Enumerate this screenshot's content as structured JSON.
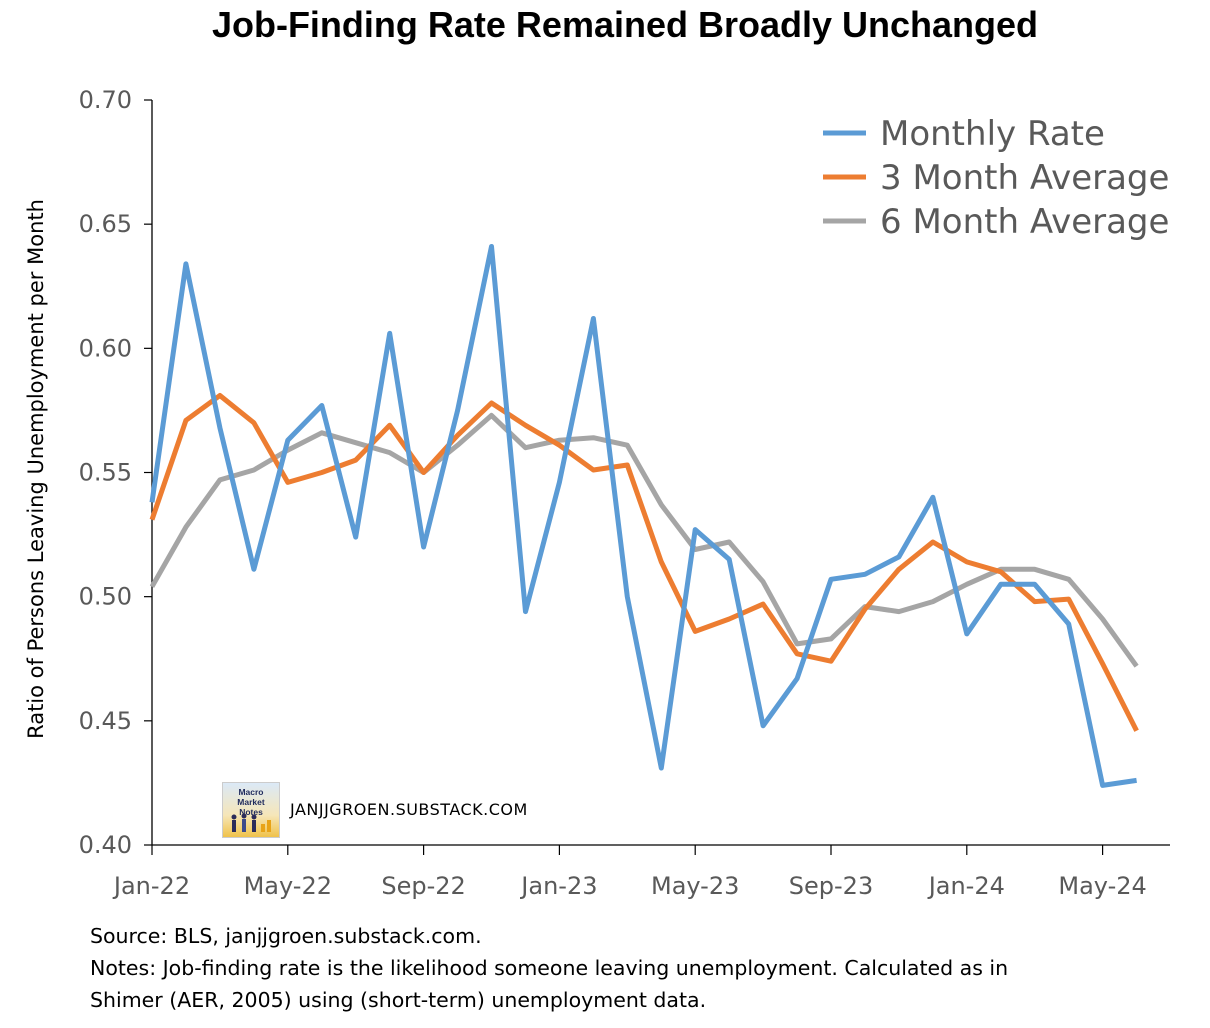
{
  "chart_data": {
    "type": "line",
    "title": "Job-Finding Rate Remained Broadly Unchanged",
    "ylabel": "Ratio of Persons Leaving Unemployment per Month",
    "xlabel": "",
    "ylim": [
      0.4,
      0.7
    ],
    "yticks": [
      "0.40",
      "0.45",
      "0.50",
      "0.55",
      "0.60",
      "0.65",
      "0.70"
    ],
    "xticks": [
      "Jan-22",
      "May-22",
      "Sep-22",
      "Jan-23",
      "May-23",
      "Sep-23",
      "Jan-24",
      "May-24"
    ],
    "grid": false,
    "legend_position": "top-right",
    "x": [
      "Jan-22",
      "Feb-22",
      "Mar-22",
      "Apr-22",
      "May-22",
      "Jun-22",
      "Jul-22",
      "Aug-22",
      "Sep-22",
      "Oct-22",
      "Nov-22",
      "Dec-22",
      "Jan-23",
      "Feb-23",
      "Mar-23",
      "Apr-23",
      "May-23",
      "Jun-23",
      "Jul-23",
      "Aug-23",
      "Sep-23",
      "Oct-23",
      "Nov-23",
      "Dec-23",
      "Jan-24",
      "Feb-24",
      "Mar-24",
      "Apr-24",
      "May-24",
      "Jun-24"
    ],
    "series": [
      {
        "name": "Monthly Rate",
        "color": "#5b9bd5",
        "values": [
          0.538,
          0.634,
          0.568,
          0.511,
          0.563,
          0.577,
          0.524,
          0.606,
          0.52,
          0.575,
          0.641,
          0.494,
          0.546,
          0.612,
          0.5,
          0.431,
          0.527,
          0.515,
          0.448,
          0.467,
          0.507,
          0.509,
          0.516,
          0.54,
          0.485,
          0.505,
          0.505,
          0.489,
          0.424,
          0.426
        ]
      },
      {
        "name": "3 Month Average",
        "color": "#ed7d31",
        "values": [
          0.531,
          0.571,
          0.581,
          0.57,
          0.546,
          0.55,
          0.555,
          0.569,
          0.55,
          0.565,
          0.578,
          0.569,
          0.561,
          0.551,
          0.553,
          0.514,
          0.486,
          0.491,
          0.497,
          0.477,
          0.474,
          0.495,
          0.511,
          0.522,
          0.514,
          0.51,
          0.498,
          0.499,
          0.473,
          0.446
        ]
      },
      {
        "name": "6 Month Average",
        "color": "#a5a5a5",
        "values": [
          0.504,
          0.528,
          0.547,
          0.551,
          0.559,
          0.566,
          0.562,
          0.558,
          0.55,
          0.561,
          0.573,
          0.56,
          0.563,
          0.564,
          0.561,
          0.537,
          0.519,
          0.522,
          0.506,
          0.481,
          0.483,
          0.496,
          0.494,
          0.498,
          0.505,
          0.511,
          0.511,
          0.507,
          0.491,
          0.472
        ]
      }
    ]
  },
  "footnotes": {
    "source": "Source: BLS, janjjgroen.substack.com.",
    "notes_line1": "Notes: Job-finding rate is the likelihood someone leaving unemployment. Calculated as in",
    "notes_line2": "Shimer (AER, 2005) using (short-term) unemployment data."
  },
  "watermark": {
    "logo_text": "Macro Market Notes",
    "url": "JANJJGROEN.SUBSTACK.COM"
  }
}
